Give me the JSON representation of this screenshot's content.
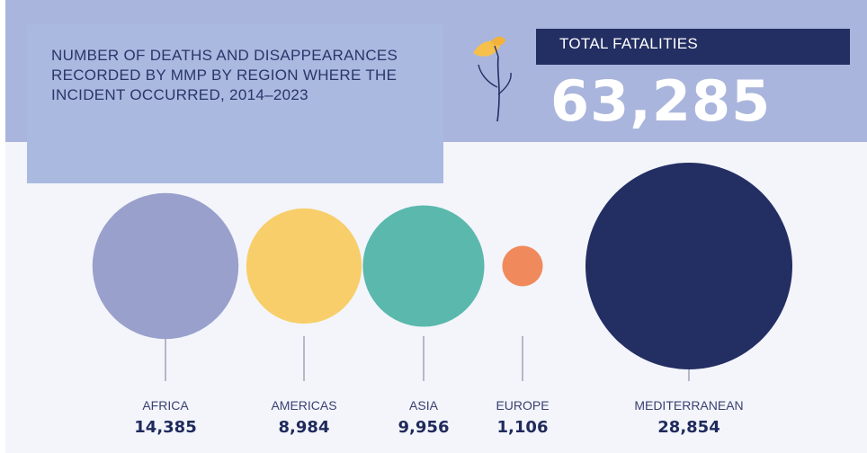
{
  "title": "NUMBER OF DEATHS AND DISAPPEARANCES RECORDED BY MMP BY REGION WHERE THE INCIDENT OCCURRED, 2014–2023",
  "total": {
    "label": "TOTAL FATALITIES",
    "value": "63,285"
  },
  "icons": {
    "flower": "flower-icon"
  },
  "colors": {
    "band": "#a9b5dc",
    "title_box": "#a9b9e0",
    "total_label_bg": "#232e63",
    "connector": "#8a8fa8",
    "label_text": "#3a4170",
    "value_text": "#1f2a5c"
  },
  "chart_data": {
    "type": "bubble",
    "categories": [
      "AFRICA",
      "AMERICAS",
      "ASIA",
      "EUROPE",
      "MEDITERRANEAN"
    ],
    "values": [
      14385,
      8984,
      9956,
      1106,
      28854
    ],
    "value_labels": [
      "14,385",
      "8,984",
      "9,956",
      "1,106",
      "28,854"
    ],
    "colors": [
      "#9aa0cc",
      "#f8ce6a",
      "#5ab8ad",
      "#f08a5d",
      "#232e63"
    ]
  }
}
